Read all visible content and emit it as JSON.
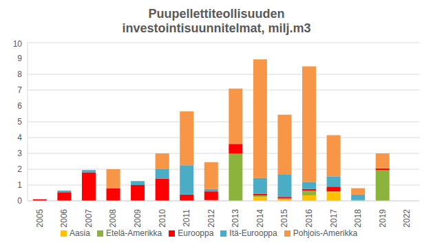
{
  "chart_data": {
    "type": "bar",
    "title": "Puupellettiteollisuuden investointisuunnitelmat, milj.m3",
    "stacked": true,
    "grid": true,
    "legend": "bottom",
    "categories": [
      "2005",
      "2006",
      "2007",
      "2008",
      "2009",
      "2010",
      "2011",
      "2012",
      "2013",
      "2014",
      "2015",
      "2016",
      "2017",
      "2018",
      "2019",
      "2022"
    ],
    "ylim": [
      0,
      10
    ],
    "yticks": [
      0,
      1,
      2,
      3,
      4,
      5,
      6,
      7,
      8,
      9,
      10
    ],
    "series": [
      {
        "name": "Aasia",
        "color": "#ffc000",
        "values": [
          0,
          0,
          0,
          0,
          0,
          0,
          0,
          0.05,
          0,
          0.25,
          0.1,
          0.35,
          0.55,
          0,
          0,
          0
        ]
      },
      {
        "name": "Etelä-Amerikka",
        "color": "#8cb33b",
        "values": [
          0,
          0,
          0,
          0,
          0,
          0,
          0,
          0,
          3.0,
          0.1,
          0.05,
          0.3,
          0.05,
          0.05,
          1.95,
          0
        ]
      },
      {
        "name": "Eurooppa",
        "color": "#ff0000",
        "values": [
          0.1,
          0.55,
          1.8,
          0.8,
          1.0,
          1.4,
          0.4,
          0.55,
          0.6,
          0.1,
          0.1,
          0.1,
          0.3,
          0,
          0.1,
          0
        ]
      },
      {
        "name": "Itä-Eurooppa",
        "color": "#4bacc6",
        "values": [
          0,
          0.1,
          0.15,
          0,
          0.25,
          0.6,
          1.85,
          0.15,
          0,
          1.0,
          1.4,
          0.45,
          0.65,
          0.35,
          0,
          0
        ]
      },
      {
        "name": "Pohjois-Amerikka",
        "color": "#f79646",
        "values": [
          0,
          0,
          0,
          1.2,
          0,
          1.0,
          3.4,
          1.7,
          3.5,
          7.5,
          3.8,
          7.3,
          2.6,
          0.4,
          0.95,
          0
        ]
      }
    ]
  }
}
